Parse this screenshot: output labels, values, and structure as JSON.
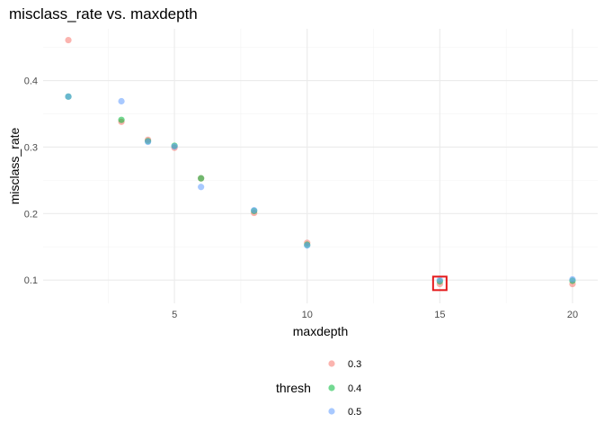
{
  "chart_data": {
    "type": "scatter",
    "title": "misclass_rate vs. maxdepth",
    "xlabel": "maxdepth",
    "ylabel": "misclass_rate",
    "xlim": [
      0.05,
      20.95
    ],
    "ylim": [
      0.065,
      0.478
    ],
    "x_ticks": [
      5,
      10,
      15,
      20
    ],
    "x_minor_ticks": [
      2.5,
      7.5,
      12.5,
      17.5
    ],
    "y_ticks": [
      0.1,
      0.2,
      0.3,
      0.4
    ],
    "y_minor_ticks": [
      0.15,
      0.25,
      0.35,
      0.45
    ],
    "grid": true,
    "legend": {
      "title": "thresh",
      "position": "bottom"
    },
    "highlight": {
      "x": 15,
      "y": 0.095,
      "color": "#e41a1c"
    },
    "series": [
      {
        "name": "0.3",
        "color": "#f8766d",
        "x": [
          1,
          3,
          4,
          5,
          6,
          8,
          10,
          15,
          20
        ],
        "y": [
          0.461,
          0.338,
          0.311,
          0.299,
          0.253,
          0.201,
          0.156,
          0.094,
          0.094
        ]
      },
      {
        "name": "0.4",
        "color": "#00ba38",
        "x": [
          1,
          3,
          4,
          5,
          6,
          8,
          10,
          15,
          20
        ],
        "y": [
          0.376,
          0.341,
          0.309,
          0.302,
          0.253,
          0.204,
          0.153,
          0.098,
          0.099
        ]
      },
      {
        "name": "0.5",
        "color": "#619cff",
        "x": [
          1,
          3,
          4,
          5,
          6,
          8,
          10,
          15,
          20
        ],
        "y": [
          0.376,
          0.369,
          0.308,
          0.301,
          0.24,
          0.205,
          0.152,
          0.1,
          0.101
        ]
      }
    ]
  }
}
